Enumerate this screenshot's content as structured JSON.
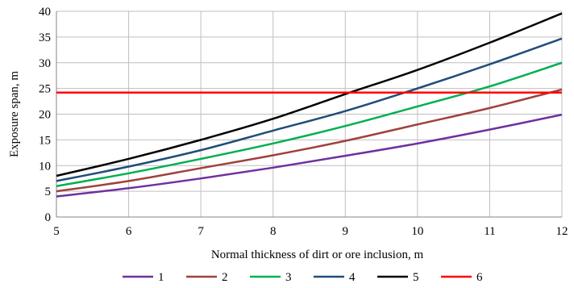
{
  "chart_data": {
    "type": "line",
    "title": "",
    "xlabel": "Normal thickness of dirt or ore inclusion, m",
    "ylabel": "Exposure span, m",
    "xlim": [
      5,
      12
    ],
    "ylim": [
      0,
      40
    ],
    "x_ticks": [
      "5",
      "6",
      "7",
      "8",
      "9",
      "10",
      "11",
      "12"
    ],
    "y_ticks": [
      "0",
      "5",
      "10",
      "15",
      "20",
      "25",
      "30",
      "35",
      "40"
    ],
    "grid": true,
    "legend_position": "bottom",
    "x": [
      5,
      6,
      7,
      8,
      9,
      10,
      11,
      12
    ],
    "series": [
      {
        "name": "1",
        "color": "#7030a0",
        "values": [
          4.0,
          5.6,
          7.5,
          9.6,
          11.9,
          14.3,
          17.0,
          19.9
        ]
      },
      {
        "name": "2",
        "color": "#a0413c",
        "values": [
          5.0,
          7.0,
          9.5,
          12.0,
          14.8,
          18.0,
          21.2,
          24.8
        ]
      },
      {
        "name": "3",
        "color": "#00b050",
        "values": [
          6.0,
          8.5,
          11.3,
          14.3,
          17.7,
          21.5,
          25.4,
          30.0
        ]
      },
      {
        "name": "4",
        "color": "#1f4e79",
        "values": [
          7.0,
          9.8,
          13.0,
          16.8,
          20.6,
          25.0,
          29.7,
          34.7
        ]
      },
      {
        "name": "5",
        "color": "#000000",
        "values": [
          8.0,
          11.3,
          15.0,
          19.1,
          23.9,
          28.6,
          33.9,
          39.6
        ]
      },
      {
        "name": "6",
        "color": "#ff0000",
        "values": [
          24.2,
          24.2,
          24.2,
          24.2,
          24.2,
          24.2,
          24.2,
          24.2
        ]
      }
    ]
  }
}
